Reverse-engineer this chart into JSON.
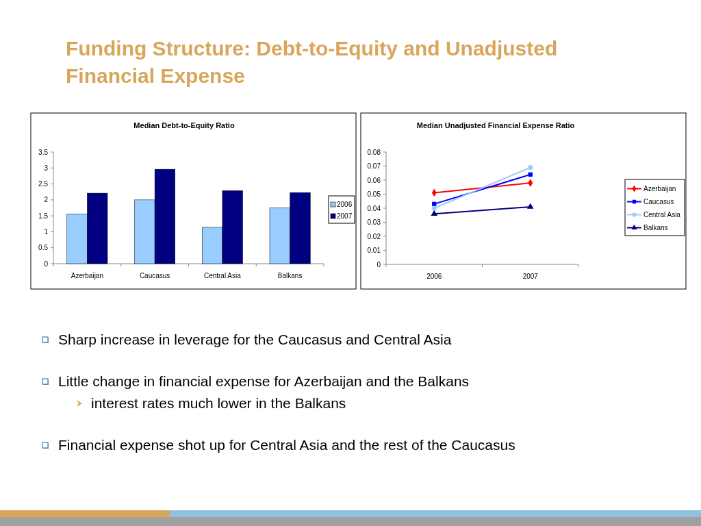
{
  "chart_data": [
    {
      "type": "other",
      "title": "Funding Structure: Debt-to-Equity and Unadjusted Financial Expense",
      "annotations": [
        "Sharp increase in leverage for the Caucasus and Central Asia",
        "Little change in financial expense for Azerbaijan and the Balkans",
        "interest rates much lower in the Balkans",
        "Financial expense shot up for Central Asia and the rest of the Caucasus"
      ]
    },
    {
      "type": "bar",
      "title": "Median Debt-to-Equity Ratio",
      "categories": [
        "Azerbaijan",
        "Caucasus",
        "Central Asia",
        "Balkans"
      ],
      "series": [
        {
          "name": "2006",
          "color": "#99ccff",
          "values": [
            1.56,
            2.0,
            1.14,
            1.75
          ]
        },
        {
          "name": "2007",
          "color": "#000080",
          "values": [
            2.21,
            2.96,
            2.29,
            2.23
          ]
        }
      ],
      "ylim": [
        0,
        3.5
      ],
      "yticks": [
        0,
        0.5,
        1,
        1.5,
        2,
        2.5,
        3,
        3.5
      ],
      "grid": false,
      "legend": "right"
    },
    {
      "type": "line",
      "title": "Median Unadjusted Financial Expense Ratio",
      "categories": [
        "2006",
        "2007"
      ],
      "series": [
        {
          "name": "Azerbaijan",
          "color": "#ff0000",
          "marker": "diamond",
          "values": [
            0.051,
            0.058
          ]
        },
        {
          "name": "Caucasus",
          "color": "#0000ff",
          "marker": "square",
          "values": [
            0.043,
            0.064
          ]
        },
        {
          "name": "Central Asia",
          "color": "#99ccff",
          "marker": "circle",
          "values": [
            0.04,
            0.069
          ]
        },
        {
          "name": "Balkans",
          "color": "#000080",
          "marker": "triangle",
          "values": [
            0.036,
            0.041
          ]
        }
      ],
      "ylim": [
        0,
        0.08
      ],
      "yticks": [
        0,
        0.01,
        0.02,
        0.03,
        0.04,
        0.05,
        0.06,
        0.07,
        0.08
      ],
      "grid": false,
      "legend": "right",
      "line_style": "solid"
    }
  ]
}
